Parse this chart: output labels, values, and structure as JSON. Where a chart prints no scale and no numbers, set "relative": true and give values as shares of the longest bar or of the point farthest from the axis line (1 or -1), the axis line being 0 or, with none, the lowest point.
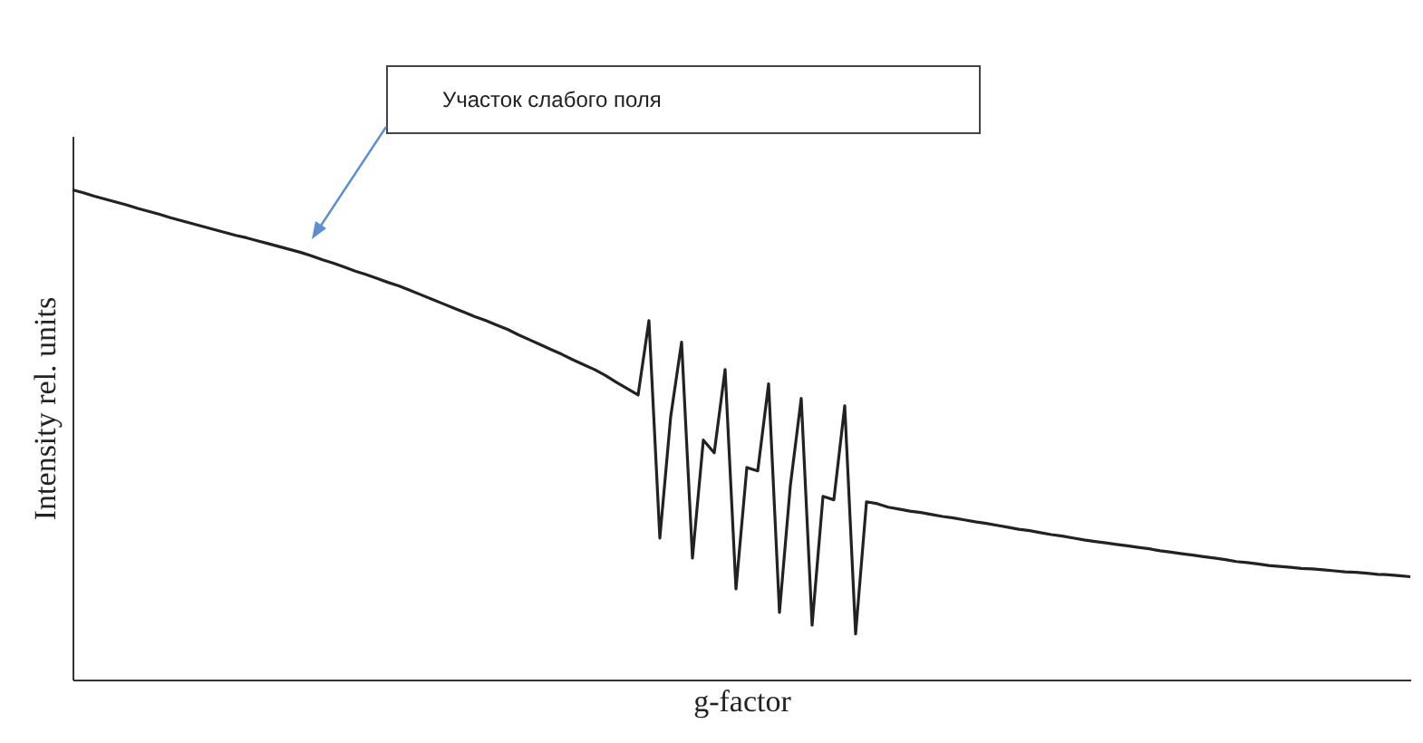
{
  "chart_data": {
    "type": "line",
    "relative": true,
    "xlabel": "g-factor",
    "ylabel": "Intensity rel. units",
    "grid": false,
    "line_style": "solid",
    "marker": "none",
    "annotations": [
      "Участок слабого поля"
    ],
    "categories": [
      null,
      null,
      null,
      null,
      null,
      null,
      null,
      null,
      null,
      null,
      null,
      null,
      null,
      null,
      null,
      null,
      null,
      null,
      null,
      null,
      null,
      null,
      null,
      null,
      null,
      null,
      null,
      null,
      null,
      null,
      null,
      null,
      null,
      null,
      null,
      null,
      null,
      null,
      null,
      null,
      null,
      null,
      null,
      null,
      null,
      null,
      null,
      null,
      null,
      null,
      null,
      null,
      null,
      null,
      null,
      null,
      null,
      null,
      null,
      null,
      null,
      null,
      null,
      null,
      null,
      null,
      null,
      null,
      null,
      null,
      null,
      null,
      null,
      null,
      null,
      null,
      null,
      null,
      null,
      null,
      null,
      null,
      null,
      null,
      null,
      null,
      null,
      null,
      null,
      null,
      null,
      null,
      null,
      null,
      null,
      null,
      null,
      null,
      null,
      null,
      null,
      null,
      null,
      null,
      null,
      null,
      null,
      null,
      null,
      null,
      null,
      null,
      null,
      null,
      null,
      null,
      null,
      null,
      null,
      null,
      null,
      null,
      null,
      null
    ],
    "series": [
      {
        "color": "#222222",
        "values": [
          1,
          0.994,
          0.987,
          0.981,
          0.975,
          0.969,
          0.962,
          0.956,
          0.95,
          0.943,
          0.937,
          0.931,
          0.925,
          0.919,
          0.913,
          0.907,
          0.902,
          0.896,
          0.89,
          0.884,
          0.878,
          0.872,
          0.865,
          0.857,
          0.85,
          0.842,
          0.834,
          0.827,
          0.819,
          0.811,
          0.804,
          0.795,
          0.786,
          0.777,
          0.768,
          0.759,
          0.75,
          0.741,
          0.733,
          0.724,
          0.715,
          0.704,
          0.694,
          0.684,
          0.674,
          0.664,
          0.653,
          0.643,
          0.633,
          0.621,
          0.607,
          0.594,
          0.581,
          0.733,
          0.289,
          0.537,
          0.689,
          0.248,
          0.489,
          0.463,
          0.633,
          0.185,
          0.433,
          0.426,
          0.604,
          0.137,
          0.396,
          0.574,
          0.111,
          0.374,
          0.367,
          0.559,
          0.093,
          0.363,
          0.359,
          0.352,
          0.348,
          0.344,
          0.341,
          0.337,
          0.333,
          0.33,
          0.326,
          0.322,
          0.319,
          0.315,
          0.311,
          0.307,
          0.304,
          0.3,
          0.296,
          0.293,
          0.289,
          0.285,
          0.282,
          0.279,
          0.276,
          0.273,
          0.27,
          0.267,
          0.263,
          0.26,
          0.257,
          0.254,
          0.251,
          0.248,
          0.245,
          0.241,
          0.239,
          0.236,
          0.233,
          0.231,
          0.229,
          0.227,
          0.226,
          0.224,
          0.222,
          0.22,
          0.219,
          0.217,
          0.215,
          0.214,
          0.212,
          0.21
        ]
      }
    ]
  }
}
